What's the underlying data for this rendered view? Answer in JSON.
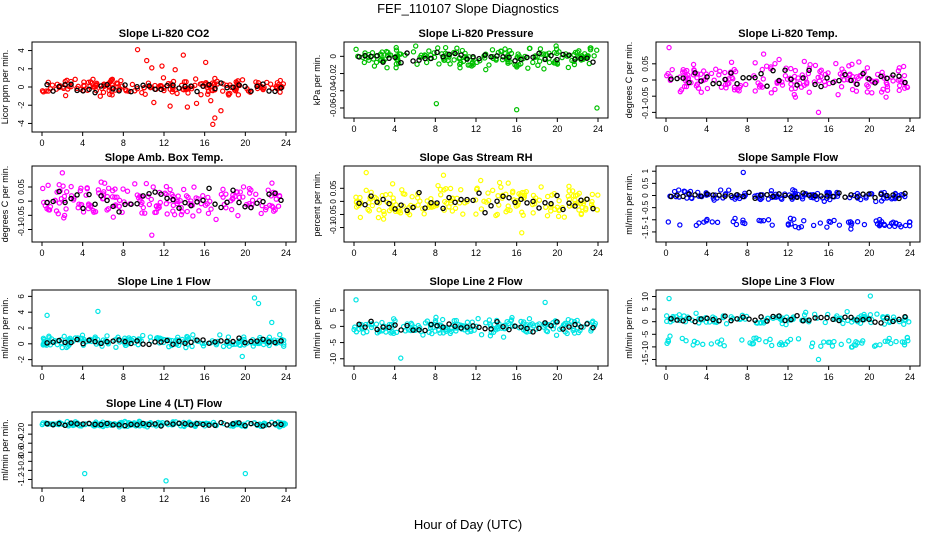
{
  "page": {
    "title": "FEF_110107  Slope Diagnostics",
    "xlabel": "Hour of Day (UTC)"
  },
  "colors": {
    "black_series": "#000000",
    "red": "#ff0000",
    "green": "#00c000",
    "magenta": "#ff00ff",
    "yellow": "#ffff00",
    "blue": "#0000ff",
    "cyan": "#00e5e5"
  },
  "chart_data": [
    {
      "type": "scatter",
      "title": "Slope Li-820 CO2",
      "ylabel": "Licor ppm per min.",
      "xlim": [
        0,
        24
      ],
      "ylim": [
        -4.5,
        4.5
      ],
      "xticks": [
        0,
        4,
        8,
        12,
        16,
        20,
        24
      ],
      "yticks": [
        -4,
        -2,
        0,
        2,
        4
      ],
      "color": "red",
      "center": 0.0,
      "spread": 0.6,
      "outliers": [
        [
          9.4,
          4.1
        ],
        [
          10.3,
          2.9
        ],
        [
          11.0,
          -1.7
        ],
        [
          11.8,
          2.3
        ],
        [
          12.6,
          -2.1
        ],
        [
          13.9,
          3.5
        ],
        [
          14.3,
          -2.2
        ],
        [
          15.2,
          -1.8
        ],
        [
          16.1,
          2.7
        ],
        [
          16.6,
          -1.5
        ],
        [
          17.0,
          -3.4
        ],
        [
          16.8,
          -4.1
        ],
        [
          10.8,
          2.1
        ],
        [
          13.1,
          1.9
        ],
        [
          17.6,
          -2.6
        ]
      ]
    },
    {
      "type": "scatter",
      "title": "Slope Li-820 Pressure",
      "ylabel": "kPa per min.",
      "xlim": [
        0,
        24
      ],
      "ylim": [
        -0.067,
        0.012
      ],
      "xticks": [
        0,
        4,
        8,
        12,
        16,
        20,
        24
      ],
      "yticks": [
        -0.06,
        -0.04,
        -0.02,
        0.0
      ],
      "color": "green",
      "center": -0.001,
      "spread": 0.008,
      "outliers": [
        [
          8.1,
          -0.055
        ],
        [
          16.0,
          -0.062
        ],
        [
          23.9,
          -0.06
        ]
      ]
    },
    {
      "type": "scatter",
      "title": "Slope Li-820 Temp.",
      "ylabel": "degrees C per min.",
      "xlim": [
        0,
        24
      ],
      "ylim": [
        -0.105,
        0.105
      ],
      "xticks": [
        0,
        4,
        8,
        12,
        16,
        20,
        24
      ],
      "yticks": [
        -0.1,
        -0.05,
        0.0,
        0.05
      ],
      "color": "magenta",
      "center": 0.0,
      "spread": 0.035,
      "outliers": [
        [
          0.3,
          0.1
        ],
        [
          15.0,
          -0.1
        ],
        [
          9.6,
          0.08
        ]
      ]
    },
    {
      "type": "scatter",
      "title": "Slope Amb. Box Temp.",
      "ylabel": "degrees C per min.",
      "xlim": [
        0,
        24
      ],
      "ylim": [
        -0.13,
        0.11
      ],
      "xticks": [
        0,
        4,
        8,
        12,
        16,
        20,
        24
      ],
      "yticks": [
        -0.1,
        -0.05,
        0.0,
        0.05
      ],
      "color": "magenta",
      "center": 0.0,
      "spread": 0.045,
      "outliers": [
        [
          2.0,
          0.1
        ],
        [
          10.8,
          -0.12
        ]
      ]
    },
    {
      "type": "scatter",
      "title": "Slope Gas Stream RH",
      "ylabel": "percent per min.",
      "xlim": [
        0,
        24
      ],
      "ylim": [
        -0.14,
        0.12
      ],
      "xticks": [
        0,
        4,
        8,
        12,
        16,
        20,
        24
      ],
      "yticks": [
        -0.1,
        -0.05,
        0.0,
        0.05
      ],
      "color": "yellow",
      "center": 0.0,
      "spread": 0.045,
      "outliers": [
        [
          1.2,
          0.11
        ],
        [
          16.5,
          -0.12
        ],
        [
          8.8,
          0.1
        ]
      ]
    },
    {
      "type": "scatter",
      "title": "Slope Sample Flow",
      "ylabel": "ml/min per min.",
      "xlim": [
        0,
        24
      ],
      "ylim": [
        -1.75,
        1.05
      ],
      "xticks": [
        0,
        4,
        8,
        12,
        16,
        20,
        24
      ],
      "yticks": [
        -1.5,
        -1.0,
        -0.5,
        0.0,
        0.5,
        1.0
      ],
      "color": "blue",
      "center": 0.0,
      "spread": 0.15,
      "band2": -1.15,
      "band2_spread": 0.13,
      "outliers": [
        [
          7.6,
          0.95
        ]
      ]
    },
    {
      "type": "scatter",
      "title": "Slope Line 1 Flow",
      "ylabel": "ml/min per min.",
      "xlim": [
        0,
        24
      ],
      "ylim": [
        -2.3,
        6.3
      ],
      "xticks": [
        0,
        4,
        8,
        12,
        16,
        20,
        24
      ],
      "yticks": [
        -2,
        0,
        2,
        4,
        6
      ],
      "color": "cyan",
      "center": 0.3,
      "spread": 0.5,
      "outliers": [
        [
          5.5,
          4.1
        ],
        [
          20.9,
          5.8
        ],
        [
          21.3,
          5.1
        ],
        [
          0.5,
          3.6
        ],
        [
          19.7,
          -1.6
        ],
        [
          22.6,
          2.7
        ]
      ]
    },
    {
      "type": "scatter",
      "title": "Slope Line 2 Flow",
      "ylabel": "ml/min per min.",
      "xlim": [
        0,
        24
      ],
      "ylim": [
        -11,
        10
      ],
      "xticks": [
        0,
        4,
        8,
        12,
        16,
        20,
        24
      ],
      "yticks": [
        -10,
        -5,
        0,
        5
      ],
      "color": "cyan",
      "center": 0.0,
      "spread": 1.8,
      "outliers": [
        [
          0.2,
          8.2
        ],
        [
          4.6,
          -9.8
        ],
        [
          18.8,
          7.4
        ]
      ]
    },
    {
      "type": "scatter",
      "title": "Slope Line 3 Flow",
      "ylabel": "ml/min per min.",
      "xlim": [
        0,
        24
      ],
      "ylim": [
        -16,
        11
      ],
      "xticks": [
        0,
        4,
        8,
        12,
        16,
        20,
        24
      ],
      "yticks": [
        -15,
        -10,
        -5,
        0,
        5,
        10
      ],
      "color": "cyan",
      "center": 1.0,
      "spread": 1.6,
      "band2": -8.5,
      "band2_spread": 1.6,
      "outliers": [
        [
          0.3,
          9.2
        ],
        [
          15.0,
          -15.0
        ],
        [
          20.1,
          10.2
        ]
      ]
    },
    {
      "type": "scatter",
      "title": "Slope Line 4 (LT) Flow",
      "ylabel": "ml/min per min.",
      "xlim": [
        0,
        24
      ],
      "ylim": [
        -1.3,
        0.2
      ],
      "xticks": [
        0,
        4,
        8,
        12,
        16,
        20,
        24
      ],
      "yticks": [
        -1.2,
        -1.0,
        -0.8,
        -0.6,
        -0.4,
        -0.2,
        0.0
      ],
      "color": "cyan",
      "center": 0.02,
      "spread": 0.04,
      "outliers": [
        [
          4.2,
          -1.07
        ],
        [
          12.2,
          -1.23
        ],
        [
          20.0,
          -1.07
        ]
      ]
    }
  ]
}
